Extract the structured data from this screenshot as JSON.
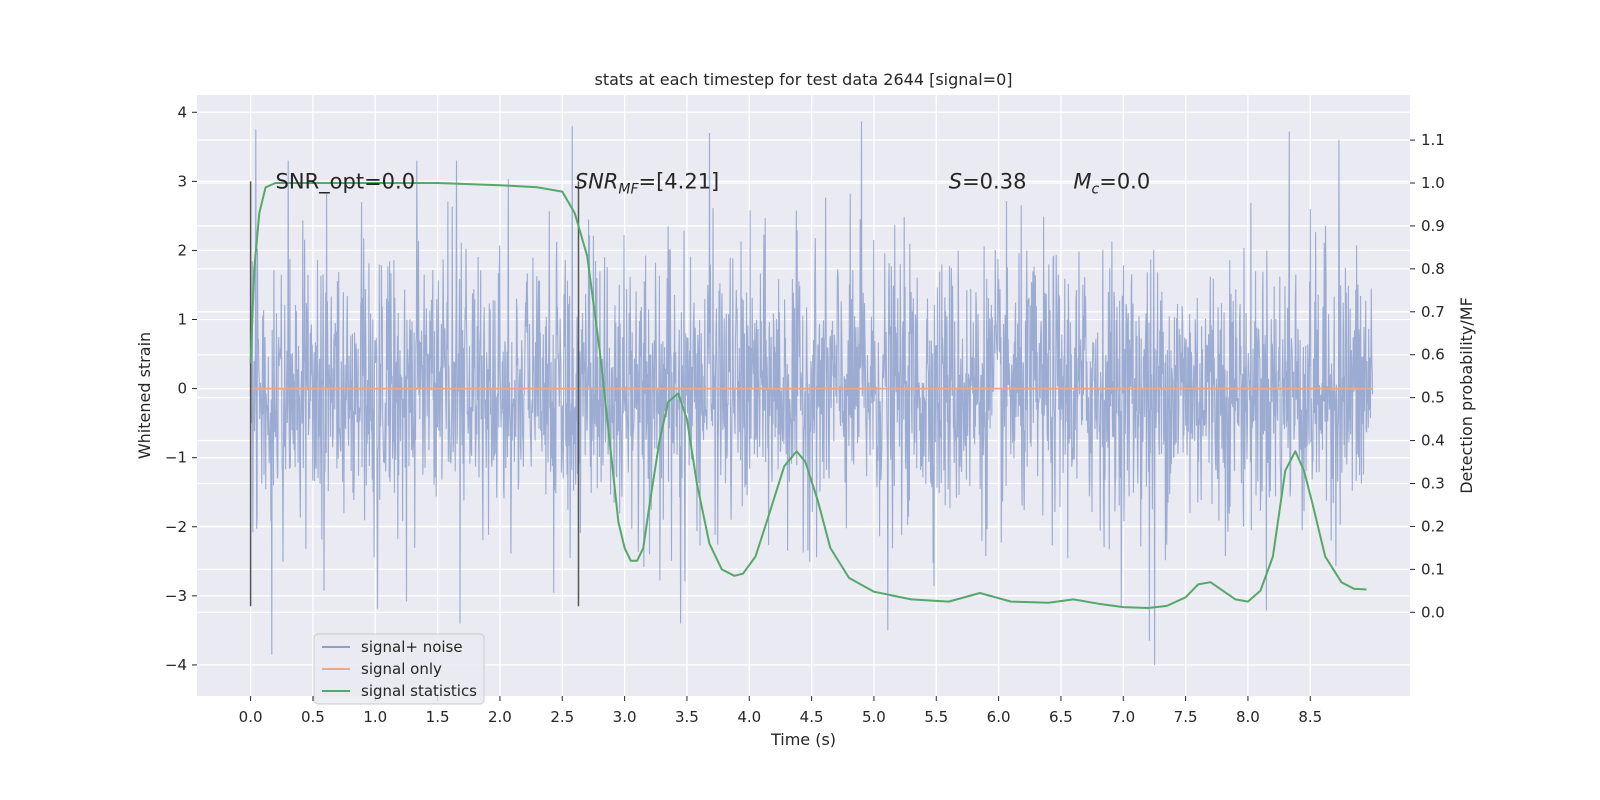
{
  "chart_data": {
    "type": "line",
    "title": "stats at each timestep for test data 2644 [signal=0]",
    "xlabel": "Time (s)",
    "ylabel": "Whitened strain",
    "y2label": "Detection probability/MF",
    "xlim": [
      -0.43,
      9.3
    ],
    "ylim": [
      -4.45,
      4.25
    ],
    "y2lim": [
      -0.195,
      1.205
    ],
    "xticks": [
      0.0,
      0.5,
      1.0,
      1.5,
      2.0,
      2.5,
      3.0,
      3.5,
      4.0,
      4.5,
      5.0,
      5.5,
      6.0,
      6.5,
      7.0,
      7.5,
      8.0,
      8.5
    ],
    "xtick_labels": [
      "0.0",
      "0.5",
      "1.0",
      "1.5",
      "2.0",
      "2.5",
      "3.0",
      "3.5",
      "4.0",
      "4.5",
      "5.0",
      "5.5",
      "6.0",
      "6.5",
      "7.0",
      "7.5",
      "8.0",
      "8.5"
    ],
    "yticks": [
      -4,
      -3,
      -2,
      -1,
      0,
      1,
      2,
      3,
      4
    ],
    "ytick_labels": [
      "−4",
      "−3",
      "−2",
      "−1",
      "0",
      "1",
      "2",
      "3",
      "4"
    ],
    "y2ticks": [
      0.0,
      0.1,
      0.2,
      0.3,
      0.4,
      0.5,
      0.6,
      0.7,
      0.8,
      0.9,
      1.0,
      1.1
    ],
    "y2tick_labels": [
      "0.0",
      "0.1",
      "0.2",
      "0.3",
      "0.4",
      "0.5",
      "0.6",
      "0.7",
      "0.8",
      "0.9",
      "1.0",
      "1.1"
    ],
    "grid": true,
    "legend_placement": "lower-left",
    "legend": [
      {
        "label": "signal+ noise",
        "color": "#8da0cb"
      },
      {
        "label": "signal only",
        "color": "#e8a98a"
      },
      {
        "label": "signal statistics",
        "color": "#55a868"
      }
    ],
    "annotations": {
      "snr_opt": "SNR_opt=0.0",
      "snr_mf_base": "SNR",
      "snr_mf_sub": "MF",
      "snr_mf_rest": "=[4.21]",
      "s_base": "S",
      "s_rest": "=0.38",
      "mc_base": "M",
      "mc_sub": "c",
      "mc_rest": "=0.0"
    },
    "vertical_lines_x": [
      0.0,
      2.63
    ],
    "vertical_lines_yrange": [
      -3.15,
      3.0
    ],
    "noise_series": {
      "name": "signal+ noise",
      "x_range": [
        0.0,
        9.0
      ],
      "envelope_sigma": 0.95,
      "peaks_high": [
        [
          0.04,
          3.75
        ],
        [
          0.3,
          3.3
        ],
        [
          2.58,
          3.8
        ],
        [
          3.68,
          3.7
        ],
        [
          4.9,
          3.87
        ],
        [
          8.33,
          3.72
        ],
        [
          8.73,
          3.6
        ]
      ],
      "peaks_low": [
        [
          0.17,
          -3.85
        ],
        [
          1.68,
          -3.4
        ],
        [
          3.45,
          -3.4
        ],
        [
          5.11,
          -3.5
        ],
        [
          7.25,
          -4.0
        ],
        [
          7.21,
          -3.65
        ]
      ]
    },
    "signal_only": {
      "name": "signal only",
      "x": [
        0.0,
        9.0
      ],
      "y": [
        0.0,
        0.0
      ]
    },
    "statistics": {
      "name": "signal statistics",
      "x": [
        0.0,
        0.03,
        0.07,
        0.12,
        0.2,
        0.3,
        0.5,
        1.0,
        1.5,
        2.0,
        2.3,
        2.5,
        2.6,
        2.7,
        2.8,
        2.88,
        2.95,
        3.0,
        3.05,
        3.1,
        3.15,
        3.2,
        3.28,
        3.35,
        3.43,
        3.5,
        3.58,
        3.68,
        3.78,
        3.88,
        3.95,
        4.05,
        4.15,
        4.28,
        4.38,
        4.45,
        4.55,
        4.65,
        4.8,
        5.0,
        5.3,
        5.6,
        5.85,
        6.1,
        6.4,
        6.6,
        6.8,
        7.0,
        7.2,
        7.35,
        7.5,
        7.6,
        7.7,
        7.8,
        7.9,
        8.0,
        8.1,
        8.2,
        8.3,
        8.38,
        8.45,
        8.52,
        8.62,
        8.75,
        8.85,
        8.95
      ],
      "y": [
        0.58,
        0.8,
        0.93,
        0.99,
        1.0,
        1.0,
        1.0,
        1.0,
        1.0,
        0.995,
        0.99,
        0.98,
        0.93,
        0.83,
        0.61,
        0.4,
        0.21,
        0.15,
        0.12,
        0.12,
        0.15,
        0.25,
        0.4,
        0.49,
        0.51,
        0.45,
        0.3,
        0.16,
        0.1,
        0.085,
        0.09,
        0.13,
        0.22,
        0.34,
        0.375,
        0.35,
        0.26,
        0.15,
        0.08,
        0.048,
        0.03,
        0.025,
        0.045,
        0.025,
        0.022,
        0.03,
        0.02,
        0.012,
        0.01,
        0.015,
        0.035,
        0.065,
        0.07,
        0.05,
        0.03,
        0.025,
        0.05,
        0.13,
        0.33,
        0.375,
        0.33,
        0.25,
        0.13,
        0.07,
        0.055,
        0.053
      ]
    }
  }
}
